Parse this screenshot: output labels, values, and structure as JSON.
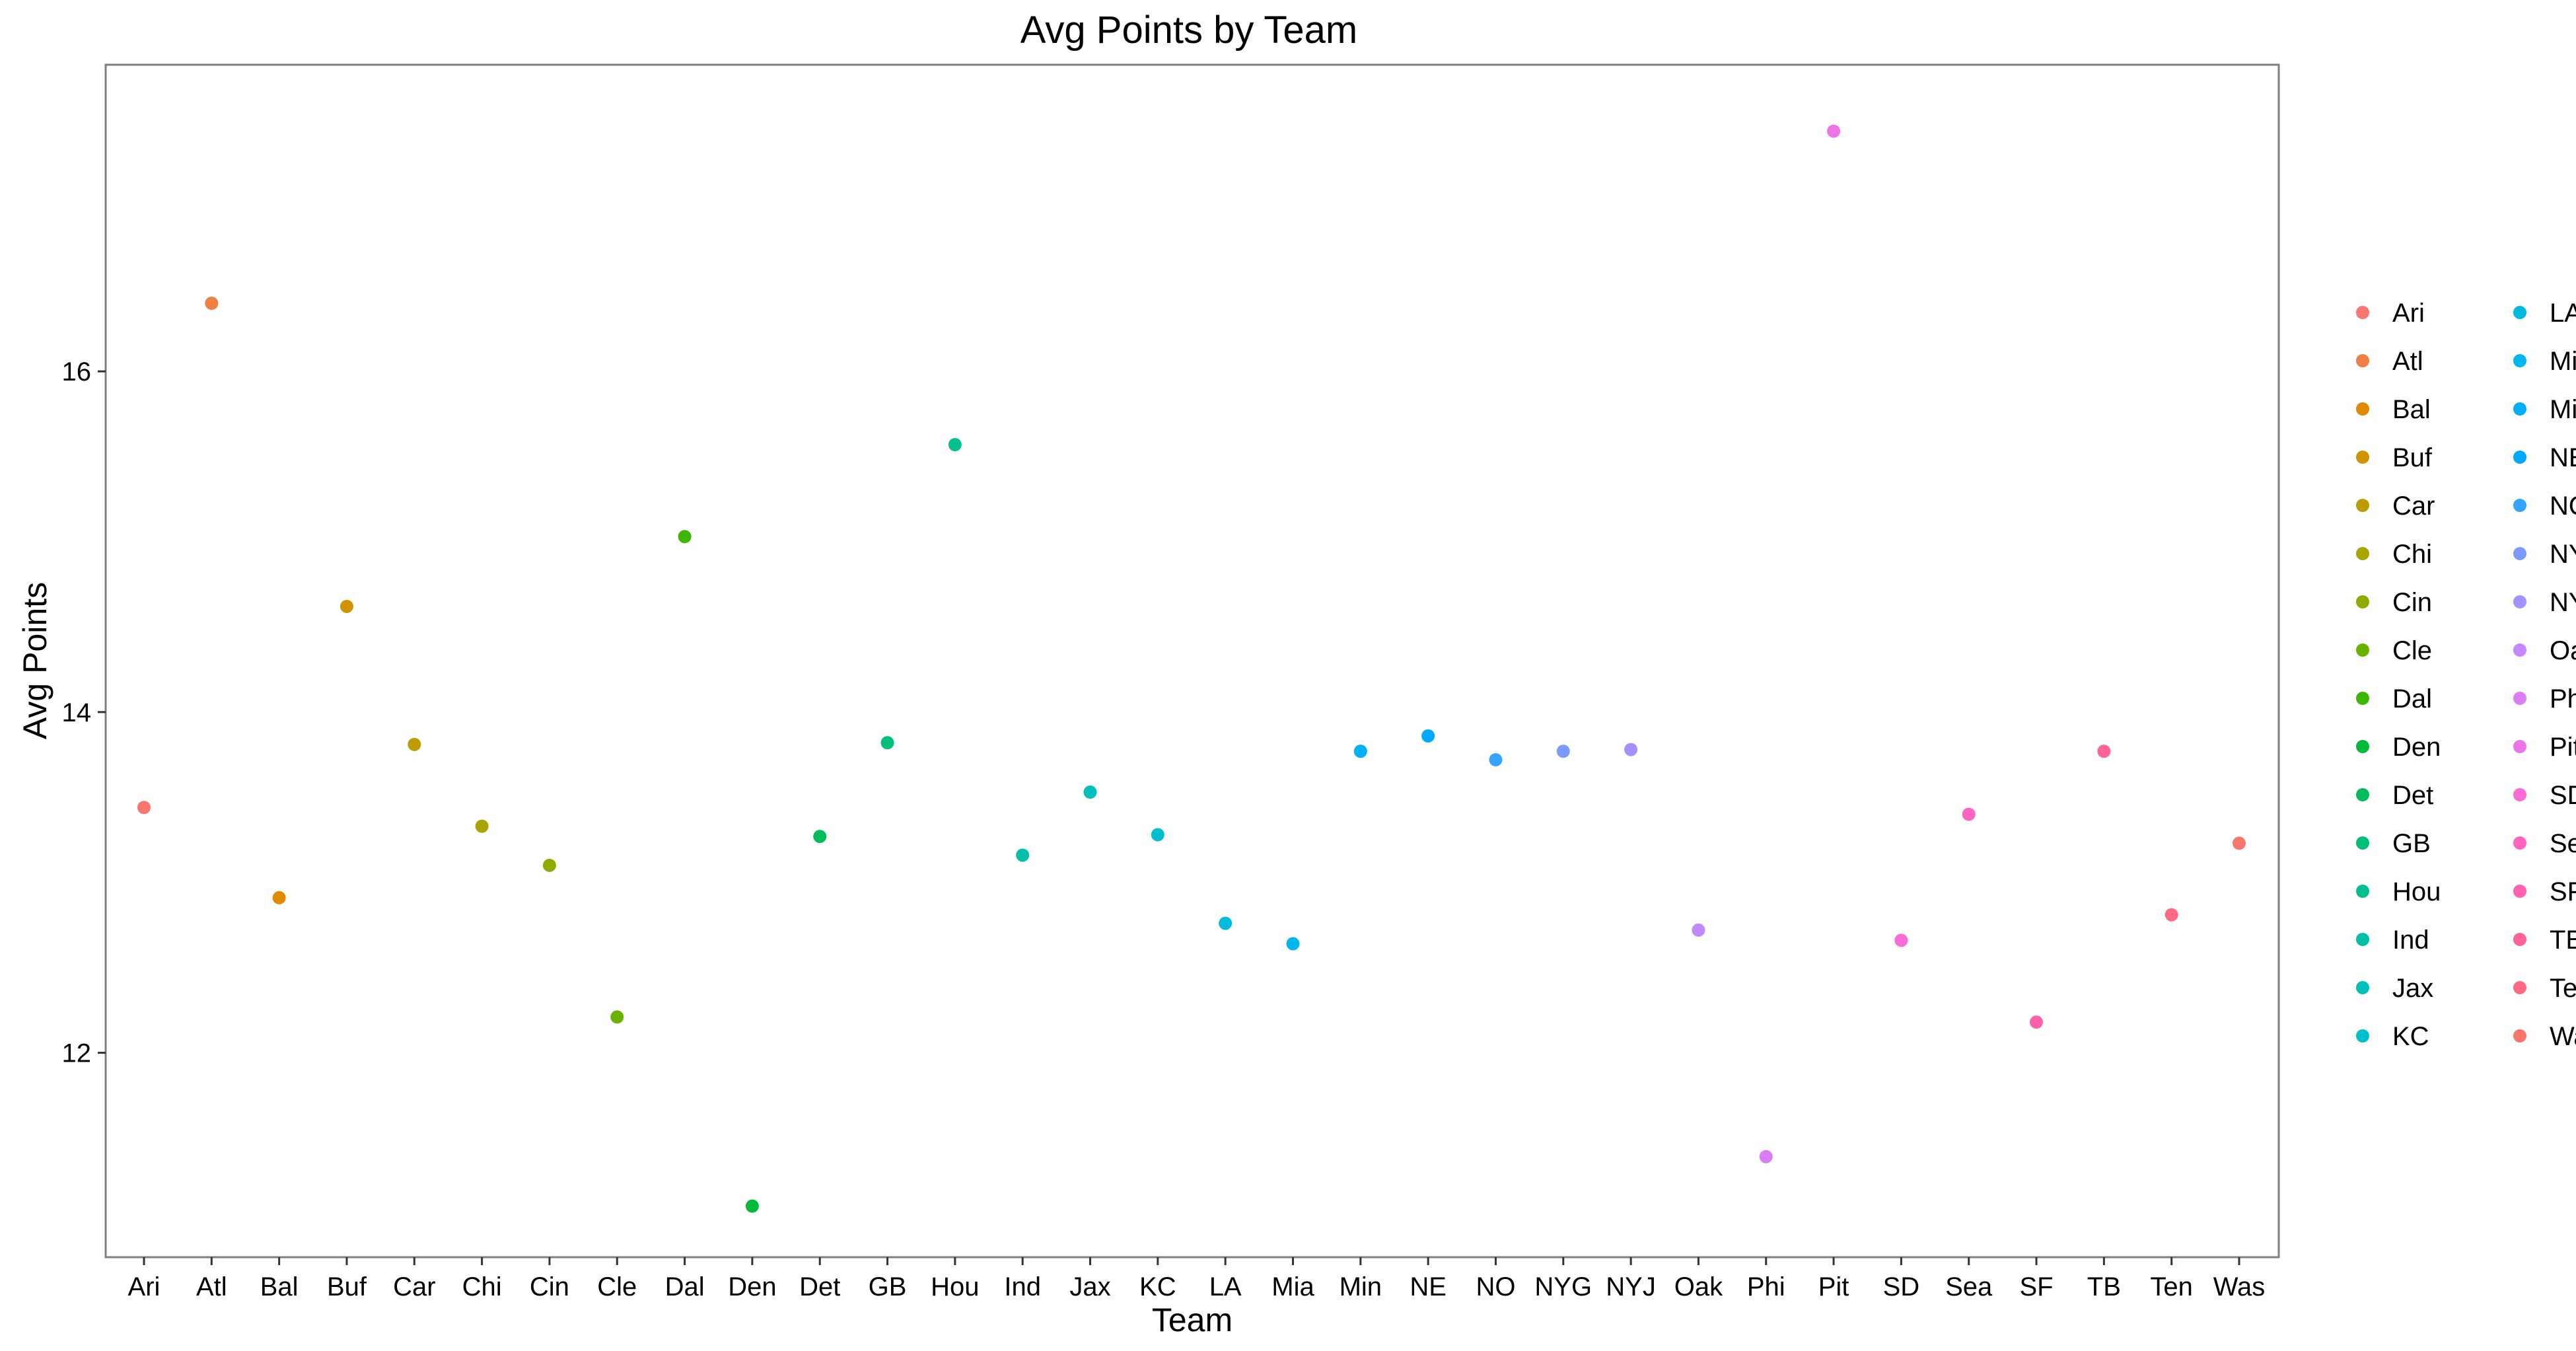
{
  "chart_data": {
    "type": "scatter",
    "title": "Avg Points by Team",
    "xlabel": "Team",
    "ylabel": "Avg Points",
    "categories": [
      "Ari",
      "Atl",
      "Bal",
      "Buf",
      "Car",
      "Chi",
      "Cin",
      "Cle",
      "Dal",
      "Den",
      "Det",
      "GB",
      "Hou",
      "Ind",
      "Jax",
      "KC",
      "LA",
      "Mia",
      "Min",
      "NE",
      "NO",
      "NYG",
      "NYJ",
      "Oak",
      "Phi",
      "Pit",
      "SD",
      "Sea",
      "SF",
      "TB",
      "Ten",
      "Was"
    ],
    "values": [
      13.44,
      16.4,
      12.91,
      14.62,
      13.81,
      13.33,
      13.1,
      12.21,
      15.03,
      11.1,
      13.27,
      13.82,
      15.57,
      13.16,
      13.53,
      13.28,
      12.76,
      12.64,
      13.77,
      13.86,
      13.72,
      13.77,
      13.78,
      12.72,
      11.39,
      17.41,
      12.66,
      13.4,
      12.18,
      13.77,
      12.81,
      13.23
    ],
    "colors": [
      "#F8766D",
      "#EE8043",
      "#E18A00",
      "#D09400",
      "#BE9C00",
      "#A9A400",
      "#8EAB00",
      "#6BB100",
      "#3DB600",
      "#00BA38",
      "#00BD5C",
      "#00BF78",
      "#00C091",
      "#00C1A7",
      "#00C0BB",
      "#00BECD",
      "#00BBDD",
      "#00B6EB",
      "#00B0F6",
      "#00A8FF",
      "#35A2FF",
      "#7B9AFF",
      "#A491FF",
      "#C387FF",
      "#DB7EF4",
      "#ED74E6",
      "#F96BD5",
      "#FF64C3",
      "#FF61AE",
      "#FF6398",
      "#FF6A80",
      "#F8766D"
    ],
    "ylim": [
      10.8,
      17.8
    ],
    "yticks": [
      12,
      14,
      16
    ],
    "legend": {
      "placement": "right",
      "columns": 2
    },
    "grid": false
  }
}
